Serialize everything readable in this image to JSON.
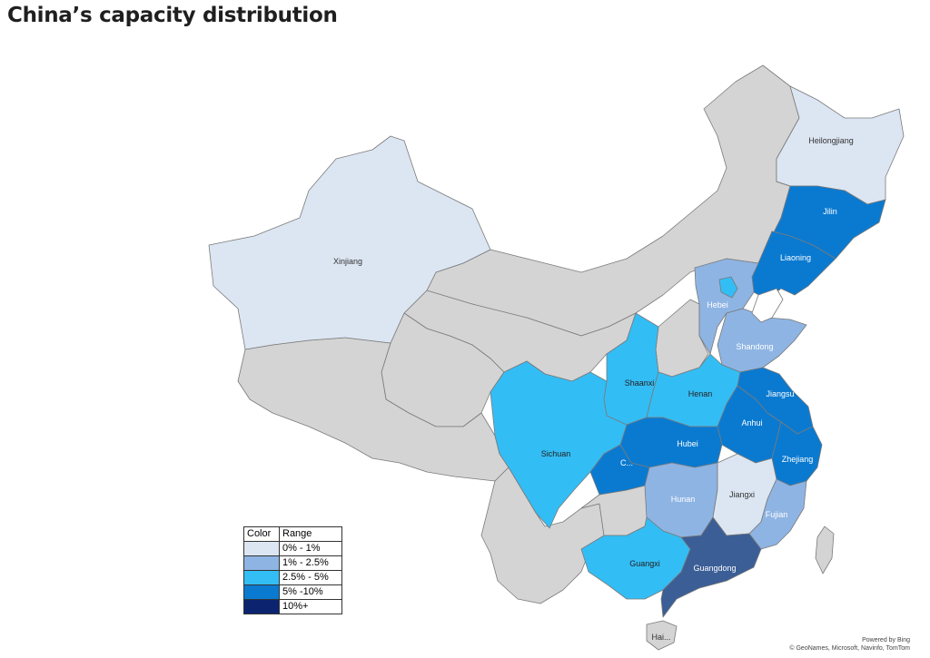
{
  "title": "China’s capacity distribution",
  "legend": {
    "header_color": "Color",
    "header_range": "Range",
    "rows": [
      {
        "label": "0% - 1%",
        "color": "#dce6f2"
      },
      {
        "label": "1% - 2.5%",
        "color": "#8eb4e3"
      },
      {
        "label": "2.5% - 5%",
        "color": "#33bdf5"
      },
      {
        "label": "5% -10%",
        "color": "#0a7ad1"
      },
      {
        "label": "10%+",
        "color": "#0c2470"
      }
    ]
  },
  "colors": {
    "no_data": "#d4d4d4",
    "guangdong": "#3b5e96"
  },
  "provinces": {
    "heilongjiang": "Heilongjiang",
    "jilin": "Jilin",
    "liaoning": "Liaoning",
    "xinjiang": "Xinjiang",
    "hebei": "Hebei",
    "shandong": "Shandong",
    "shaanxi": "Shaanxi",
    "henan": "Henan",
    "jiangsu": "Jiangsu",
    "anhui": "Anhui",
    "hubei": "Hubei",
    "sichuan": "Sichuan",
    "chongqing": "C...",
    "zhejiang": "Zhejiang",
    "hunan": "Hunan",
    "jiangxi": "Jiangxi",
    "fujian": "Fujian",
    "guangxi": "Guangxi",
    "guangdong": "Guangdong",
    "hainan": "Hai..."
  },
  "credit": {
    "line1": "Powered by Bing",
    "line2": "© GeoNames, Microsoft, Navinfo, TomTom"
  }
}
